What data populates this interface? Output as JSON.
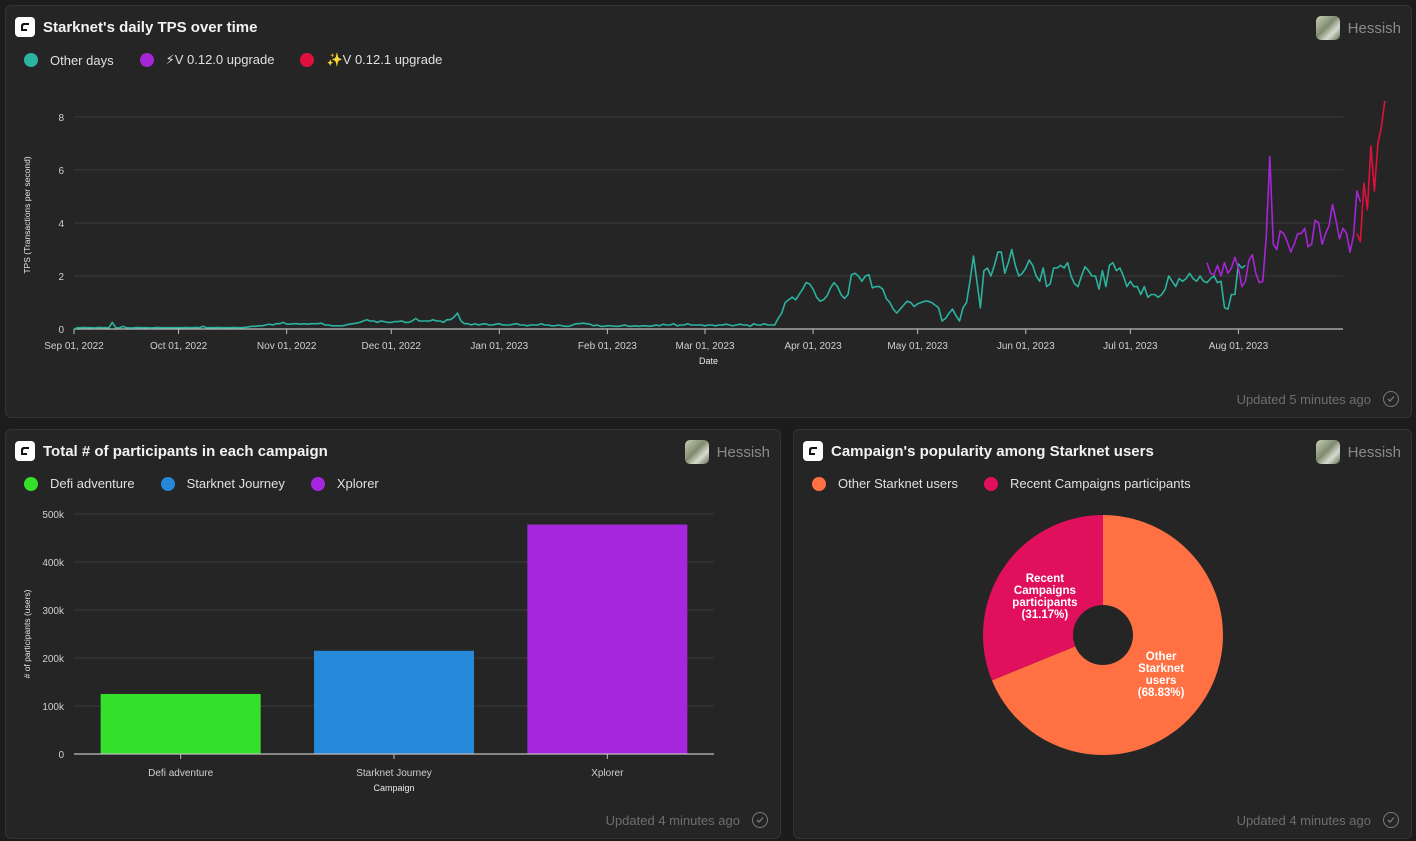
{
  "colors": {
    "other_days": "#2bb3a0",
    "v0120": "#a526d4",
    "v0121": "#e0103c",
    "defi": "#35e02a",
    "journey": "#2688d9",
    "xplorer": "#a526dd",
    "pie_other": "#ff7043",
    "pie_recent": "#e0105c"
  },
  "tps": {
    "title": "Starknet's daily TPS over time",
    "author": "Hessish",
    "updated": "Updated 5 minutes ago",
    "legend": [
      {
        "label": "Other days",
        "icon": "circle"
      },
      {
        "label": "⚡V 0.12.0 upgrade",
        "icon": "circle"
      },
      {
        "label": "✨V 0.12.1 upgrade",
        "icon": "circle"
      }
    ]
  },
  "participants": {
    "title": "Total # of participants in each campaign",
    "author": "Hessish",
    "updated": "Updated 4 minutes ago",
    "legend": [
      {
        "label": "Defi adventure"
      },
      {
        "label": "Starknet Journey"
      },
      {
        "label": "Xplorer"
      }
    ]
  },
  "popularity": {
    "title": "Campaign's popularity among Starknet users",
    "author": "Hessish",
    "updated": "Updated 4 minutes ago",
    "legend": [
      {
        "label": "Other Starknet users"
      },
      {
        "label": "Recent Campaigns participants"
      }
    ]
  },
  "chart_data": [
    {
      "type": "line",
      "title": "Starknet's daily TPS over time",
      "xlabel": "Date",
      "ylabel": "TPS (Transactions per second)",
      "ylim": [
        0,
        8.6
      ],
      "yticks": [
        "0",
        "2",
        "4",
        "6",
        "8"
      ],
      "xticks": [
        "Sep 01, 2022",
        "Oct 01, 2022",
        "Nov 01, 2022",
        "Dec 01, 2022",
        "Jan 01, 2023",
        "Feb 01, 2023",
        "Mar 01, 2023",
        "Apr 01, 2023",
        "May 01, 2023",
        "Jun 01, 2023",
        "Jul 01, 2023",
        "Aug 01, 2023"
      ],
      "x_start": "2022-09-01",
      "series": [
        {
          "name": "Other days",
          "start_day": 0,
          "values": [
            0.0,
            0.05,
            0.05,
            0.06,
            0.05,
            0.05,
            0.04,
            0.06,
            0.05,
            0.05,
            0.05,
            0.25,
            0.05,
            0.04,
            0.1,
            0.05,
            0.04,
            0.04,
            0.06,
            0.05,
            0.05,
            0.05,
            0.04,
            0.05,
            0.06,
            0.05,
            0.05,
            0.05,
            0.05,
            0.05,
            0.05,
            0.05,
            0.06,
            0.05,
            0.05,
            0.06,
            0.05,
            0.1,
            0.05,
            0.05,
            0.05,
            0.06,
            0.05,
            0.05,
            0.05,
            0.05,
            0.06,
            0.05,
            0.05,
            0.06,
            0.08,
            0.1,
            0.1,
            0.12,
            0.12,
            0.15,
            0.18,
            0.15,
            0.2,
            0.2,
            0.25,
            0.18,
            0.18,
            0.2,
            0.2,
            0.18,
            0.2,
            0.18,
            0.2,
            0.2,
            0.2,
            0.22,
            0.15,
            0.15,
            0.12,
            0.12,
            0.12,
            0.12,
            0.15,
            0.18,
            0.2,
            0.22,
            0.25,
            0.3,
            0.35,
            0.3,
            0.3,
            0.25,
            0.3,
            0.28,
            0.25,
            0.25,
            0.28,
            0.28,
            0.3,
            0.25,
            0.25,
            0.3,
            0.4,
            0.3,
            0.3,
            0.3,
            0.3,
            0.35,
            0.3,
            0.3,
            0.25,
            0.35,
            0.35,
            0.45,
            0.6,
            0.3,
            0.2,
            0.2,
            0.15,
            0.2,
            0.15,
            0.18,
            0.2,
            0.15,
            0.15,
            0.18,
            0.2,
            0.15,
            0.15,
            0.15,
            0.18,
            0.2,
            0.15,
            0.15,
            0.12,
            0.15,
            0.15,
            0.15,
            0.2,
            0.15,
            0.15,
            0.12,
            0.12,
            0.15,
            0.12,
            0.1,
            0.1,
            0.15,
            0.2,
            0.2,
            0.22,
            0.2,
            0.18,
            0.12,
            0.15,
            0.1,
            0.1,
            0.12,
            0.12,
            0.1,
            0.1,
            0.12,
            0.15,
            0.1,
            0.1,
            0.12,
            0.1,
            0.12,
            0.12,
            0.1,
            0.12,
            0.15,
            0.12,
            0.18,
            0.15,
            0.15,
            0.2,
            0.12,
            0.15,
            0.15,
            0.2,
            0.15,
            0.15,
            0.15,
            0.15,
            0.12,
            0.15,
            0.15,
            0.12,
            0.15,
            0.15,
            0.18,
            0.15,
            0.12,
            0.15,
            0.18,
            0.15,
            0.15,
            0.1,
            0.2,
            0.15,
            0.15,
            0.2,
            0.15,
            0.15,
            0.15,
            0.4,
            0.6,
            1.0,
            1.1,
            1.2,
            1.1,
            1.3,
            1.5,
            1.75,
            1.7,
            1.5,
            1.2,
            1.05,
            1.1,
            1.25,
            1.55,
            1.75,
            1.6,
            1.3,
            1.15,
            1.3,
            2.05,
            2.1,
            2.0,
            1.8,
            2.0,
            2.05,
            1.55,
            1.6,
            1.6,
            1.5,
            1.15,
            1.0,
            0.75,
            0.6,
            0.75,
            0.9,
            1.05,
            1.0,
            0.85,
            0.95,
            1.0,
            1.05,
            1.05,
            1.0,
            0.9,
            0.8,
            0.3,
            0.4,
            0.6,
            0.75,
            0.5,
            0.3,
            0.8,
            1.0,
            1.8,
            2.75,
            1.8,
            0.8,
            2.2,
            2.3,
            2.0,
            2.4,
            2.9,
            2.9,
            2.1,
            2.5,
            3.0,
            2.4,
            2.0,
            2.1,
            2.3,
            2.6,
            2.4,
            2.0,
            1.8,
            2.3,
            1.6,
            1.7,
            2.3,
            2.3,
            2.4,
            2.3,
            2.5,
            2.0,
            1.7,
            1.6,
            2.0,
            2.35,
            2.2,
            2.0,
            2.0,
            1.5,
            2.2,
            1.6,
            2.4,
            2.5,
            2.2,
            2.3,
            2.0,
            1.6,
            1.8,
            1.6,
            1.6,
            1.3,
            1.6,
            1.2,
            1.3,
            1.3,
            1.2,
            1.3,
            1.5,
            2.0,
            1.8,
            1.6,
            1.9,
            1.8,
            1.9,
            2.1,
            1.9,
            1.8,
            2.0,
            1.8,
            1.75,
            1.9,
            2.0,
            1.75,
            1.8,
            0.8,
            0.75,
            1.3,
            1.3,
            2.45,
            2.3,
            2.4
          ]
        },
        {
          "name": "⚡V 0.12.0 upgrade",
          "start_day": 325,
          "values": [
            2.5,
            2.1,
            2.05,
            2.4,
            2.0,
            2.5,
            2.1,
            2.3,
            2.7,
            2.3,
            1.6,
            1.8,
            2.6,
            2.8,
            2.1,
            1.75,
            1.8,
            3.5,
            6.5,
            3.2,
            3.0,
            3.7,
            3.6,
            3.3,
            2.9,
            3.2,
            3.6,
            3.6,
            3.8,
            3.1,
            3.2,
            4.1,
            4.0,
            3.2,
            3.6,
            3.9,
            4.7,
            4.1,
            3.4,
            3.8,
            3.6,
            2.9,
            3.5,
            5.2,
            4.8
          ]
        },
        {
          "name": "✨V 0.12.1 upgrade",
          "start_day": 368,
          "values": [
            3.6,
            3.3,
            5.5,
            4.5,
            6.9,
            5.2,
            7.0,
            7.6,
            8.6
          ]
        }
      ]
    },
    {
      "type": "bar",
      "title": "Total # of participants in each campaign",
      "xlabel": "Campaign",
      "ylabel": "# of participants (users)",
      "categories": [
        "Defi adventure",
        "Starknet Journey",
        "Xplorer"
      ],
      "values": [
        125000,
        215000,
        478000
      ],
      "ylim": [
        0,
        500000
      ],
      "yticks": [
        "0",
        "100k",
        "200k",
        "300k",
        "400k",
        "500k"
      ]
    },
    {
      "type": "pie",
      "title": "Campaign's popularity among Starknet users",
      "labels": [
        "Other Starknet users",
        "Recent Campaigns participants"
      ],
      "values": [
        68.83,
        31.17
      ],
      "slice_labels": [
        [
          "Other",
          "Starknet",
          "users",
          "(68.83%)"
        ],
        [
          "Recent",
          "Campaigns",
          "participants",
          "(31.17%)"
        ]
      ]
    }
  ]
}
